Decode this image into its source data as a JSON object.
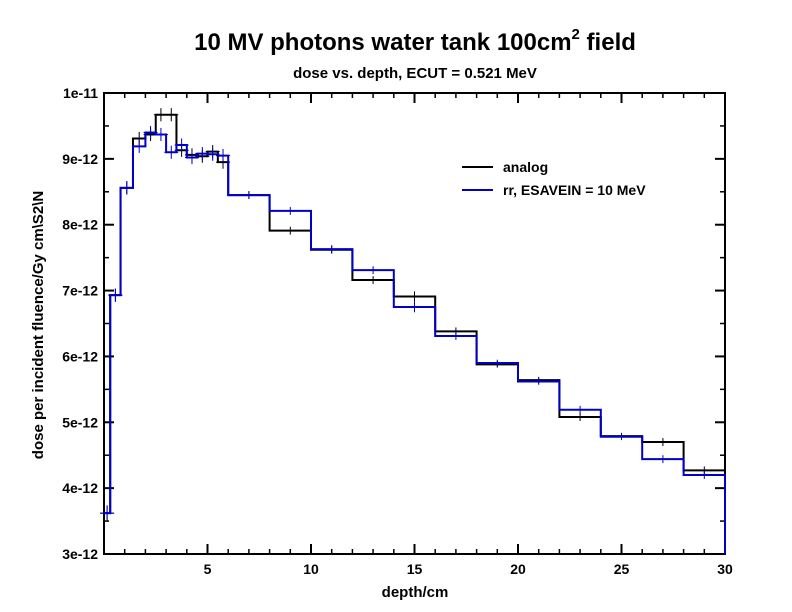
{
  "chart_data": {
    "type": "line",
    "step": true,
    "title_main": "10 MV photons water tank 100cm",
    "title_sup": "2",
    "title_tail": " field",
    "subtitle": "dose vs. depth, ECUT = 0.521 MeV",
    "xlabel": "depth/cm",
    "ylabel": "dose per incident fluence/Gy cm\\S2\\N",
    "xlim": [
      0,
      30
    ],
    "ylim": [
      3e-12,
      1e-11
    ],
    "x_ticks": [
      5,
      10,
      15,
      20,
      25,
      30
    ],
    "x_tick_labels": [
      "5",
      "10",
      "15",
      "20",
      "25",
      "30"
    ],
    "y_ticks": [
      3e-12,
      4e-12,
      5e-12,
      6e-12,
      7e-12,
      8e-12,
      9e-12,
      1e-11
    ],
    "y_tick_labels": [
      "3e-12",
      "4e-12",
      "5e-12",
      "6e-12",
      "7e-12",
      "8e-12",
      "9e-12",
      "1e-11"
    ],
    "grid": false,
    "legend_position": "top-right",
    "series": [
      {
        "name": "analog",
        "color": "#000000",
        "edges": [
          0,
          0.3,
          0.8,
          1.4,
          2.0,
          2.5,
          3.0,
          3.5,
          4.0,
          4.5,
          5.0,
          5.5,
          6.0,
          8.0,
          10.0,
          12.0,
          14.0,
          16.0,
          18.0,
          20.0,
          22.0,
          24.0,
          26.0,
          28.0,
          30.0
        ],
        "values": [
          3.62e-12,
          6.93e-12,
          8.56e-12,
          9.31e-12,
          9.37e-12,
          9.67e-12,
          9.67e-12,
          9.13e-12,
          9.06e-12,
          9.04e-12,
          9.11e-12,
          8.95e-12,
          8.45e-12,
          7.91e-12,
          7.62e-12,
          7.16e-12,
          6.91e-12,
          6.38e-12,
          5.88e-12,
          5.64e-12,
          5.08e-12,
          4.79e-12,
          4.7e-12,
          4.27e-12
        ],
        "errors": [
          1.2e-13,
          1e-13,
          1e-13,
          1e-13,
          1e-13,
          1e-13,
          1e-13,
          1e-13,
          1e-13,
          1e-13,
          1e-13,
          1e-13,
          6e-14,
          6e-14,
          6e-14,
          6e-14,
          8e-14,
          6e-14,
          5e-14,
          5e-14,
          6e-14,
          5e-14,
          6e-14,
          6e-14
        ]
      },
      {
        "name": "rr, ESAVEIN = 10 MeV",
        "color": "#0000c8",
        "edges": [
          0,
          0.3,
          0.8,
          1.4,
          2.0,
          2.5,
          3.0,
          3.5,
          4.0,
          4.5,
          5.0,
          5.5,
          6.0,
          8.0,
          10.0,
          12.0,
          14.0,
          16.0,
          18.0,
          20.0,
          22.0,
          24.0,
          26.0,
          28.0,
          30.0
        ],
        "values": [
          3.62e-12,
          6.93e-12,
          8.56e-12,
          9.19e-12,
          9.4e-12,
          9.37e-12,
          9.1e-12,
          9.21e-12,
          9.02e-12,
          9.08e-12,
          9.07e-12,
          9.05e-12,
          8.45e-12,
          8.21e-12,
          7.63e-12,
          7.31e-12,
          6.75e-12,
          6.31e-12,
          5.9e-12,
          5.62e-12,
          5.19e-12,
          4.78e-12,
          4.44e-12,
          4.2e-12
        ],
        "errors": [
          1e-13,
          1e-13,
          1e-13,
          1e-13,
          1e-13,
          1e-13,
          1e-13,
          1e-13,
          1e-13,
          1e-13,
          1e-13,
          1e-13,
          6e-14,
          6e-14,
          6e-14,
          6e-14,
          8e-14,
          6e-14,
          5e-14,
          5e-14,
          6e-14,
          5e-14,
          6e-14,
          6e-14
        ]
      }
    ]
  }
}
